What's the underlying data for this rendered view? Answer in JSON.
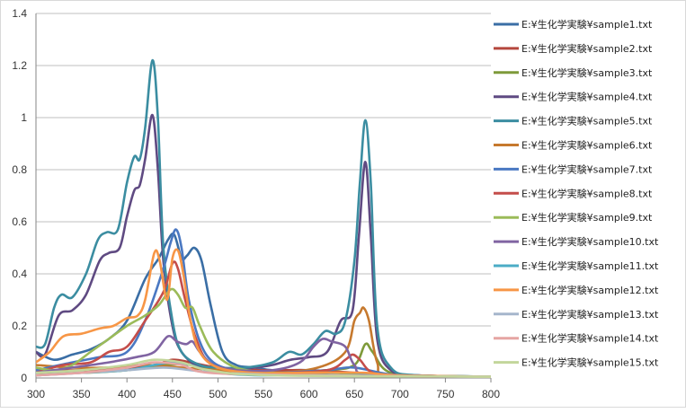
{
  "chart_data": {
    "type": "line",
    "title": "",
    "xlabel": "",
    "ylabel": "",
    "xlim": [
      300,
      800
    ],
    "ylim": [
      0,
      1.4
    ],
    "x_ticks": [
      "300",
      "350",
      "400",
      "450",
      "500",
      "550",
      "600",
      "650",
      "700",
      "750",
      "800"
    ],
    "y_ticks": [
      "0",
      "0.2",
      "0.4",
      "0.6",
      "0.8",
      "1",
      "1.2",
      "1.4"
    ],
    "grid": "horizontal",
    "legend_position": "right",
    "series": [
      {
        "name": "E:¥生化学実験¥sample1.txt",
        "color": "#3A6EA5",
        "points": [
          [
            300,
            0.1
          ],
          [
            320,
            0.07
          ],
          [
            340,
            0.09
          ],
          [
            360,
            0.11
          ],
          [
            380,
            0.15
          ],
          [
            400,
            0.22
          ],
          [
            420,
            0.38
          ],
          [
            435,
            0.46
          ],
          [
            445,
            0.53
          ],
          [
            452,
            0.55
          ],
          [
            460,
            0.46
          ],
          [
            466,
            0.47
          ],
          [
            474,
            0.5
          ],
          [
            482,
            0.45
          ],
          [
            492,
            0.28
          ],
          [
            505,
            0.1
          ],
          [
            520,
            0.05
          ],
          [
            540,
            0.04
          ],
          [
            560,
            0.03
          ],
          [
            600,
            0.03
          ],
          [
            640,
            0.02
          ],
          [
            700,
            0.01
          ],
          [
            800,
            0.005
          ]
        ]
      },
      {
        "name": "E:¥生化学実験¥sample2.txt",
        "color": "#B5473E",
        "points": [
          [
            300,
            0.03
          ],
          [
            350,
            0.03
          ],
          [
            400,
            0.04
          ],
          [
            430,
            0.05
          ],
          [
            450,
            0.07
          ],
          [
            470,
            0.06
          ],
          [
            500,
            0.04
          ],
          [
            550,
            0.03
          ],
          [
            600,
            0.03
          ],
          [
            650,
            0.02
          ],
          [
            700,
            0.01
          ],
          [
            800,
            0.005
          ]
        ]
      },
      {
        "name": "E:¥生化学実験¥sample3.txt",
        "color": "#7E9A3A",
        "points": [
          [
            300,
            0.02
          ],
          [
            350,
            0.02
          ],
          [
            400,
            0.03
          ],
          [
            440,
            0.05
          ],
          [
            470,
            0.05
          ],
          [
            500,
            0.03
          ],
          [
            550,
            0.02
          ],
          [
            620,
            0.03
          ],
          [
            650,
            0.05
          ],
          [
            662,
            0.13
          ],
          [
            670,
            0.1
          ],
          [
            690,
            0.02
          ],
          [
            750,
            0.005
          ],
          [
            800,
            0.005
          ]
        ]
      },
      {
        "name": "E:¥生化学実験¥sample4.txt",
        "color": "#5F4A82",
        "points": [
          [
            300,
            0.1
          ],
          [
            310,
            0.09
          ],
          [
            325,
            0.24
          ],
          [
            340,
            0.26
          ],
          [
            355,
            0.32
          ],
          [
            370,
            0.45
          ],
          [
            380,
            0.48
          ],
          [
            392,
            0.5
          ],
          [
            400,
            0.62
          ],
          [
            408,
            0.72
          ],
          [
            414,
            0.74
          ],
          [
            420,
            0.84
          ],
          [
            428,
            1.01
          ],
          [
            434,
            0.8
          ],
          [
            440,
            0.45
          ],
          [
            450,
            0.2
          ],
          [
            460,
            0.1
          ],
          [
            480,
            0.04
          ],
          [
            500,
            0.03
          ],
          [
            540,
            0.04
          ],
          [
            560,
            0.05
          ],
          [
            580,
            0.07
          ],
          [
            600,
            0.08
          ],
          [
            620,
            0.1
          ],
          [
            635,
            0.22
          ],
          [
            648,
            0.26
          ],
          [
            655,
            0.55
          ],
          [
            662,
            0.83
          ],
          [
            668,
            0.55
          ],
          [
            675,
            0.15
          ],
          [
            690,
            0.03
          ],
          [
            720,
            0.01
          ],
          [
            800,
            0.005
          ]
        ]
      },
      {
        "name": "E:¥生化学実験¥sample5.txt",
        "color": "#3B8DA1",
        "points": [
          [
            300,
            0.12
          ],
          [
            310,
            0.13
          ],
          [
            320,
            0.27
          ],
          [
            328,
            0.32
          ],
          [
            340,
            0.31
          ],
          [
            355,
            0.4
          ],
          [
            368,
            0.53
          ],
          [
            378,
            0.56
          ],
          [
            390,
            0.57
          ],
          [
            400,
            0.75
          ],
          [
            408,
            0.85
          ],
          [
            414,
            0.84
          ],
          [
            420,
            0.96
          ],
          [
            428,
            1.22
          ],
          [
            434,
            1.0
          ],
          [
            440,
            0.5
          ],
          [
            450,
            0.22
          ],
          [
            460,
            0.1
          ],
          [
            480,
            0.05
          ],
          [
            500,
            0.04
          ],
          [
            530,
            0.04
          ],
          [
            560,
            0.06
          ],
          [
            578,
            0.1
          ],
          [
            592,
            0.09
          ],
          [
            605,
            0.13
          ],
          [
            618,
            0.18
          ],
          [
            630,
            0.17
          ],
          [
            640,
            0.22
          ],
          [
            650,
            0.45
          ],
          [
            656,
            0.75
          ],
          [
            662,
            0.99
          ],
          [
            668,
            0.75
          ],
          [
            675,
            0.2
          ],
          [
            690,
            0.04
          ],
          [
            720,
            0.01
          ],
          [
            800,
            0.005
          ]
        ]
      },
      {
        "name": "E:¥生化学実験¥sample6.txt",
        "color": "#C6792E",
        "points": [
          [
            300,
            0.05
          ],
          [
            340,
            0.04
          ],
          [
            380,
            0.04
          ],
          [
            420,
            0.05
          ],
          [
            460,
            0.04
          ],
          [
            500,
            0.03
          ],
          [
            560,
            0.02
          ],
          [
            610,
            0.04
          ],
          [
            640,
            0.1
          ],
          [
            650,
            0.22
          ],
          [
            656,
            0.25
          ],
          [
            660,
            0.27
          ],
          [
            666,
            0.22
          ],
          [
            675,
            0.06
          ],
          [
            690,
            0.01
          ],
          [
            800,
            0.005
          ]
        ]
      },
      {
        "name": "E:¥生化学実験¥sample7.txt",
        "color": "#4A78C2",
        "points": [
          [
            300,
            0.03
          ],
          [
            340,
            0.06
          ],
          [
            370,
            0.08
          ],
          [
            400,
            0.1
          ],
          [
            420,
            0.22
          ],
          [
            440,
            0.42
          ],
          [
            448,
            0.52
          ],
          [
            454,
            0.57
          ],
          [
            460,
            0.5
          ],
          [
            468,
            0.3
          ],
          [
            480,
            0.14
          ],
          [
            495,
            0.06
          ],
          [
            520,
            0.03
          ],
          [
            560,
            0.02
          ],
          [
            620,
            0.03
          ],
          [
            650,
            0.04
          ],
          [
            700,
            0.01
          ],
          [
            800,
            0.005
          ]
        ]
      },
      {
        "name": "E:¥生化学実験¥sample8.txt",
        "color": "#C44D4A",
        "points": [
          [
            300,
            0.02
          ],
          [
            330,
            0.05
          ],
          [
            360,
            0.06
          ],
          [
            380,
            0.1
          ],
          [
            400,
            0.12
          ],
          [
            420,
            0.22
          ],
          [
            440,
            0.33
          ],
          [
            450,
            0.44
          ],
          [
            456,
            0.42
          ],
          [
            464,
            0.3
          ],
          [
            475,
            0.16
          ],
          [
            490,
            0.06
          ],
          [
            520,
            0.03
          ],
          [
            560,
            0.02
          ],
          [
            620,
            0.03
          ],
          [
            640,
            0.07
          ],
          [
            648,
            0.09
          ],
          [
            656,
            0.07
          ],
          [
            670,
            0.02
          ],
          [
            700,
            0.01
          ],
          [
            800,
            0.005
          ]
        ]
      },
      {
        "name": "E:¥生化学実験¥sample9.txt",
        "color": "#9BBB59",
        "points": [
          [
            300,
            0.04
          ],
          [
            320,
            0.03
          ],
          [
            340,
            0.05
          ],
          [
            360,
            0.1
          ],
          [
            380,
            0.15
          ],
          [
            400,
            0.2
          ],
          [
            420,
            0.24
          ],
          [
            435,
            0.28
          ],
          [
            448,
            0.34
          ],
          [
            456,
            0.32
          ],
          [
            464,
            0.27
          ],
          [
            472,
            0.27
          ],
          [
            480,
            0.2
          ],
          [
            495,
            0.1
          ],
          [
            520,
            0.04
          ],
          [
            560,
            0.02
          ],
          [
            620,
            0.02
          ],
          [
            700,
            0.01
          ],
          [
            800,
            0.005
          ]
        ]
      },
      {
        "name": "E:¥生化学実験¥sample10.txt",
        "color": "#8064A2",
        "points": [
          [
            300,
            0.02
          ],
          [
            340,
            0.04
          ],
          [
            380,
            0.06
          ],
          [
            410,
            0.08
          ],
          [
            430,
            0.1
          ],
          [
            445,
            0.16
          ],
          [
            455,
            0.14
          ],
          [
            465,
            0.13
          ],
          [
            472,
            0.14
          ],
          [
            480,
            0.1
          ],
          [
            495,
            0.05
          ],
          [
            520,
            0.03
          ],
          [
            560,
            0.03
          ],
          [
            590,
            0.06
          ],
          [
            605,
            0.12
          ],
          [
            615,
            0.15
          ],
          [
            625,
            0.14
          ],
          [
            640,
            0.12
          ],
          [
            650,
            0.05
          ],
          [
            670,
            0.01
          ],
          [
            800,
            0.005
          ]
        ]
      },
      {
        "name": "E:¥生化学実験¥sample11.txt",
        "color": "#4BACC6",
        "points": [
          [
            300,
            0.01
          ],
          [
            350,
            0.02
          ],
          [
            400,
            0.03
          ],
          [
            430,
            0.05
          ],
          [
            450,
            0.06
          ],
          [
            470,
            0.05
          ],
          [
            500,
            0.02
          ],
          [
            560,
            0.01
          ],
          [
            640,
            0.02
          ],
          [
            700,
            0.01
          ],
          [
            800,
            0.005
          ]
        ]
      },
      {
        "name": "E:¥生化学実験¥sample12.txt",
        "color": "#F79646",
        "points": [
          [
            300,
            0.06
          ],
          [
            315,
            0.1
          ],
          [
            330,
            0.16
          ],
          [
            350,
            0.17
          ],
          [
            370,
            0.19
          ],
          [
            385,
            0.2
          ],
          [
            400,
            0.23
          ],
          [
            412,
            0.24
          ],
          [
            420,
            0.3
          ],
          [
            430,
            0.48
          ],
          [
            436,
            0.45
          ],
          [
            444,
            0.3
          ],
          [
            450,
            0.46
          ],
          [
            456,
            0.49
          ],
          [
            462,
            0.4
          ],
          [
            470,
            0.22
          ],
          [
            480,
            0.1
          ],
          [
            500,
            0.04
          ],
          [
            540,
            0.02
          ],
          [
            600,
            0.02
          ],
          [
            660,
            0.02
          ],
          [
            700,
            0.01
          ],
          [
            800,
            0.005
          ]
        ]
      },
      {
        "name": "E:¥生化学実験¥sample13.txt",
        "color": "#A5B6CC",
        "points": [
          [
            300,
            0.01
          ],
          [
            350,
            0.02
          ],
          [
            400,
            0.03
          ],
          [
            440,
            0.04
          ],
          [
            470,
            0.03
          ],
          [
            500,
            0.02
          ],
          [
            600,
            0.01
          ],
          [
            800,
            0.005
          ]
        ]
      },
      {
        "name": "E:¥生化学実験¥sample14.txt",
        "color": "#E6A5A3",
        "points": [
          [
            300,
            0.01
          ],
          [
            350,
            0.02
          ],
          [
            400,
            0.04
          ],
          [
            430,
            0.06
          ],
          [
            460,
            0.05
          ],
          [
            490,
            0.02
          ],
          [
            600,
            0.01
          ],
          [
            800,
            0.005
          ]
        ]
      },
      {
        "name": "E:¥生化学実験¥sample15.txt",
        "color": "#C3D69B",
        "points": [
          [
            300,
            0.02
          ],
          [
            350,
            0.03
          ],
          [
            400,
            0.05
          ],
          [
            430,
            0.07
          ],
          [
            460,
            0.06
          ],
          [
            490,
            0.03
          ],
          [
            560,
            0.01
          ],
          [
            800,
            0.005
          ]
        ]
      }
    ]
  }
}
